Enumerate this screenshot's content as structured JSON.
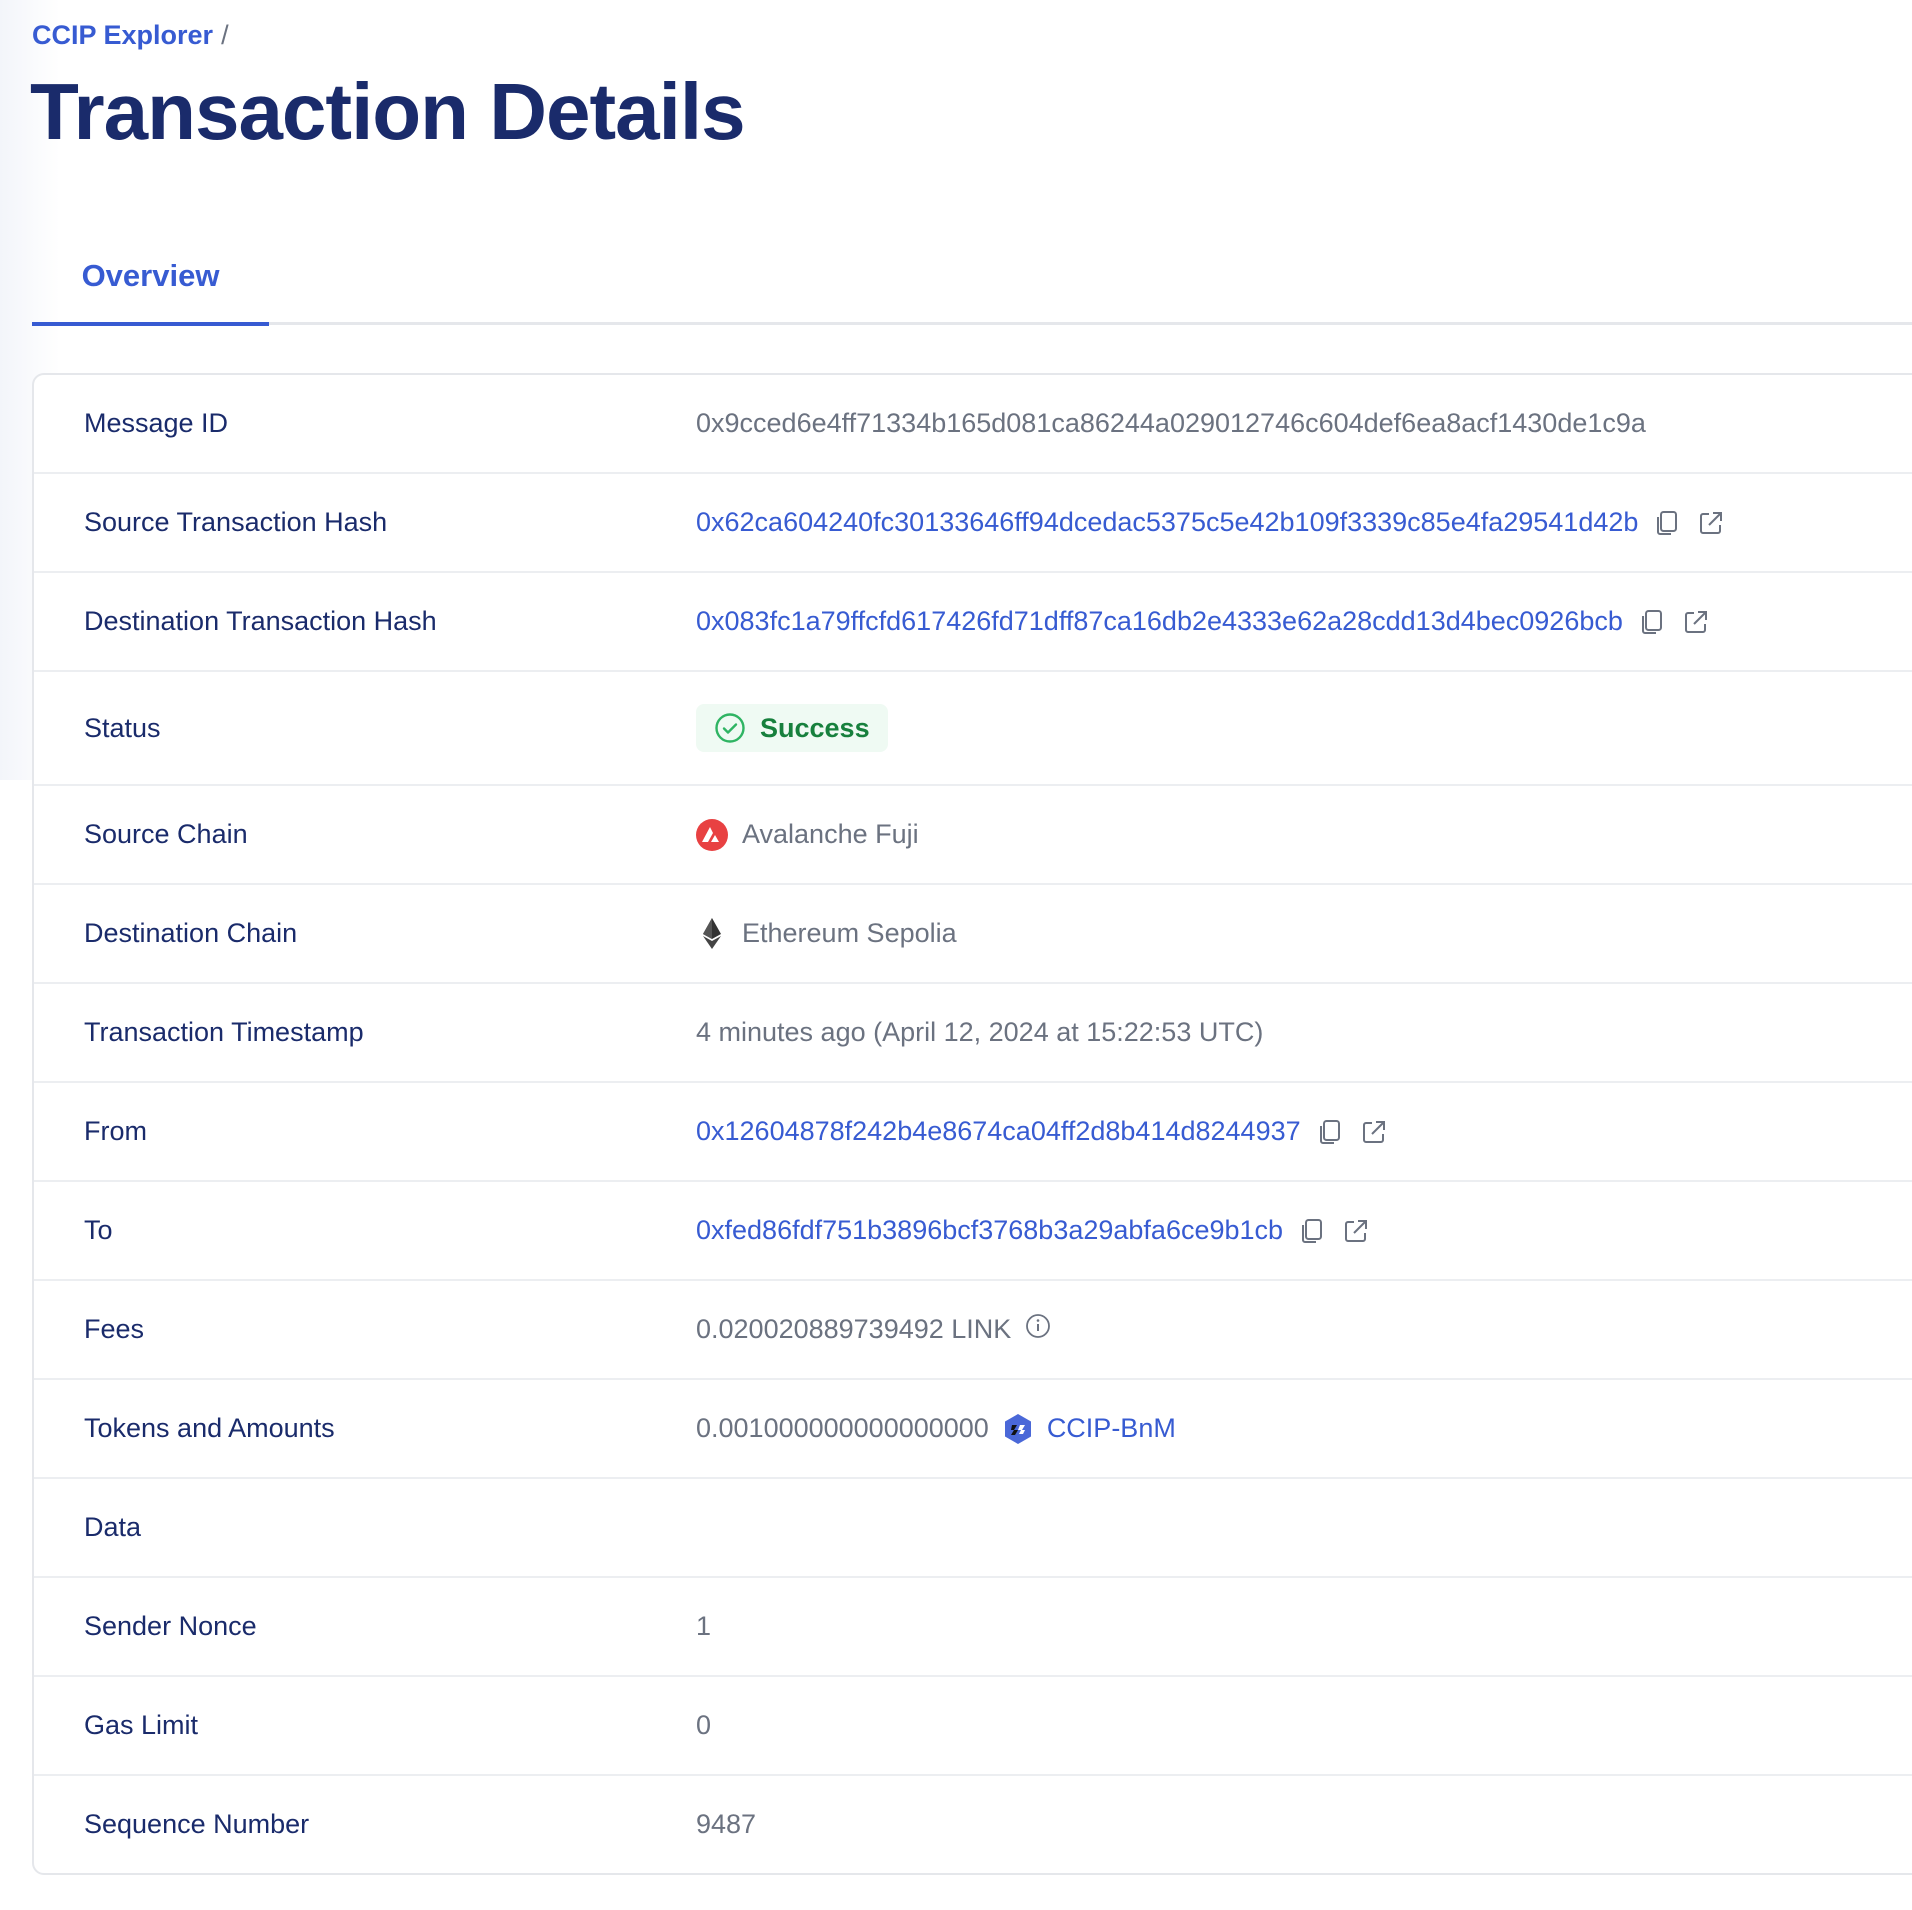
{
  "breadcrumb": {
    "root": "CCIP Explorer",
    "separator": "/"
  },
  "page_title": "Transaction Details",
  "tabs": [
    {
      "label": "Overview",
      "active": true
    }
  ],
  "colors": {
    "accent": "#375bd2",
    "title": "#1a2b6b",
    "success": "#17803d",
    "avalanche": "#e84142"
  },
  "details": {
    "message_id": {
      "label": "Message ID",
      "value": "0x9cced6e4ff71334b165d081ca86244a029012746c604def6ea8acf1430de1c9a"
    },
    "source_tx": {
      "label": "Source Transaction Hash",
      "value": "0x62ca604240fc30133646ff94dcedac5375c5e42b109f3339c85e4fa29541d42b"
    },
    "dest_tx": {
      "label": "Destination Transaction Hash",
      "value": "0x083fc1a79ffcfd617426fd71dff87ca16db2e4333e62a28cdd13d4bec0926bcb"
    },
    "status": {
      "label": "Status",
      "value": "Success",
      "icon": "check-circle-icon"
    },
    "source_chain": {
      "label": "Source Chain",
      "value": "Avalanche Fuji",
      "icon": "avalanche-icon"
    },
    "dest_chain": {
      "label": "Destination Chain",
      "value": "Ethereum Sepolia",
      "icon": "ethereum-icon"
    },
    "timestamp": {
      "label": "Transaction Timestamp",
      "value": "4 minutes ago (April 12, 2024 at 15:22:53 UTC)"
    },
    "from": {
      "label": "From",
      "value": "0x12604878f242b4e8674ca04ff2d8b414d8244937"
    },
    "to": {
      "label": "To",
      "value": "0xfed86fdf751b3896bcf3768b3a29abfa6ce9b1cb"
    },
    "fees": {
      "label": "Fees",
      "value": "0.020020889739492 LINK"
    },
    "tokens": {
      "label": "Tokens and Amounts",
      "amount": "0.001000000000000000",
      "token": "CCIP-BnM"
    },
    "data": {
      "label": "Data",
      "value": ""
    },
    "nonce": {
      "label": "Sender Nonce",
      "value": "1"
    },
    "gas_limit": {
      "label": "Gas Limit",
      "value": "0"
    },
    "sequence": {
      "label": "Sequence Number",
      "value": "9487"
    }
  }
}
